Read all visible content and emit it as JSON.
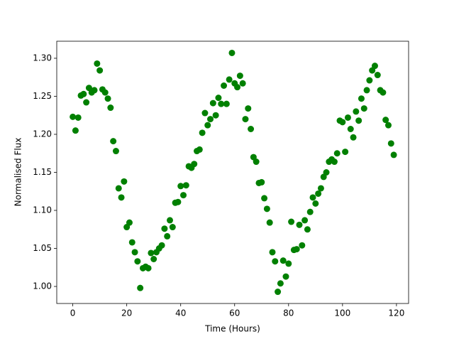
{
  "chart_data": {
    "type": "scatter",
    "xlabel": "Time (Hours)",
    "ylabel": "Normalised Flux",
    "color": "#008000",
    "x": [
      0,
      1,
      2,
      3,
      4,
      5,
      6,
      7,
      8,
      9,
      10,
      11,
      12,
      13,
      14,
      15,
      16,
      17,
      18,
      19,
      20,
      21,
      22,
      23,
      24,
      25,
      26,
      27,
      28,
      29,
      30,
      31,
      32,
      33,
      34,
      35,
      36,
      37,
      38,
      39,
      40,
      41,
      42,
      43,
      44,
      45,
      46,
      47,
      48,
      49,
      50,
      51,
      52,
      53,
      54,
      55,
      56,
      57,
      58,
      59,
      60,
      61,
      62,
      63,
      64,
      65,
      66,
      67,
      68,
      69,
      70,
      71,
      72,
      73,
      74,
      75,
      76,
      77,
      78,
      79,
      80,
      81,
      82,
      83,
      84,
      85,
      86,
      87,
      88,
      89,
      90,
      91,
      92,
      93,
      94,
      95,
      96,
      97,
      98,
      99,
      100,
      101,
      102,
      103,
      104,
      105,
      106,
      107,
      108,
      109,
      110,
      111,
      112,
      113,
      114,
      115,
      116,
      117,
      118,
      119
    ],
    "values": [
      1.223,
      1.205,
      1.222,
      1.251,
      1.253,
      1.242,
      1.261,
      1.255,
      1.258,
      1.293,
      1.284,
      1.259,
      1.255,
      1.247,
      1.235,
      1.191,
      1.178,
      1.129,
      1.117,
      1.138,
      1.078,
      1.084,
      1.058,
      1.045,
      1.033,
      0.998,
      1.024,
      1.026,
      1.024,
      1.044,
      1.036,
      1.045,
      1.05,
      1.054,
      1.076,
      1.066,
      1.087,
      1.078,
      1.11,
      1.111,
      1.132,
      1.12,
      1.133,
      1.158,
      1.156,
      1.161,
      1.178,
      1.18,
      1.202,
      1.228,
      1.212,
      1.22,
      1.241,
      1.225,
      1.248,
      1.24,
      1.264,
      1.24,
      1.272,
      1.307,
      1.267,
      1.262,
      1.277,
      1.267,
      1.22,
      1.234,
      1.207,
      1.17,
      1.164,
      1.136,
      1.137,
      1.116,
      1.102,
      1.084,
      1.045,
      1.033,
      0.993,
      1.004,
      1.034,
      1.013,
      1.03,
      1.085,
      1.048,
      1.049,
      1.081,
      1.054,
      1.087,
      1.075,
      1.098,
      1.117,
      1.109,
      1.122,
      1.129,
      1.144,
      1.15,
      1.164,
      1.167,
      1.164,
      1.175,
      1.218,
      1.216,
      1.177,
      1.222,
      1.207,
      1.196,
      1.23,
      1.218,
      1.247,
      1.234,
      1.258,
      1.271,
      1.284,
      1.29,
      1.278,
      1.258,
      1.255,
      1.219,
      1.212,
      1.188,
      1.173
    ],
    "xlim": [
      -5.95,
      124.5
    ],
    "ylim": [
      0.9776,
      1.3224
    ],
    "xticks": [
      0,
      20,
      40,
      60,
      80,
      100,
      120
    ],
    "yticks": [
      {
        "value": 1,
        "label": "1.00"
      },
      1.05,
      {
        "value": 1.1,
        "label": "1.10"
      },
      1.15,
      {
        "value": 1.2,
        "label": "1.20"
      },
      1.25,
      {
        "value": 1.3,
        "label": "1.30"
      }
    ]
  }
}
